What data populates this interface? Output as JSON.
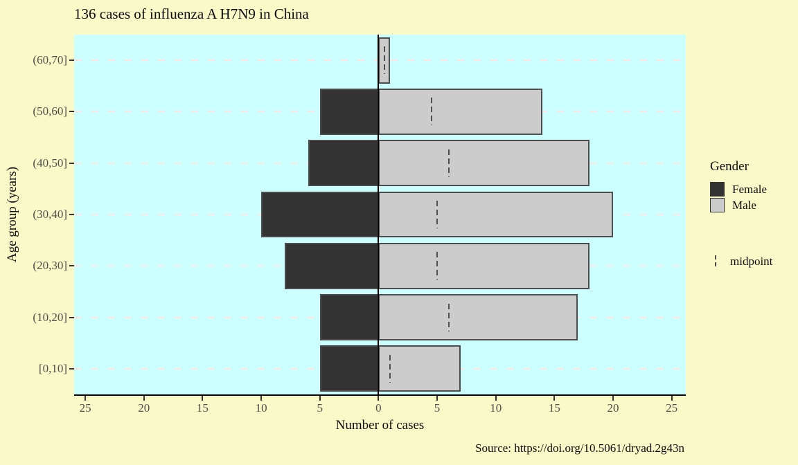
{
  "figure": {
    "source_note": "Source: https://doi.org/10.5061/dryad.2g43n"
  },
  "chart_data": {
    "type": "bar",
    "subtype": "population-pyramid",
    "title": "136 cases of influenza A H7N9 in China",
    "xlabel": "Number of cases",
    "ylabel": "Age group (years)",
    "categories": [
      "(60,70]",
      "(50,60]",
      "(40,50]",
      "(30,40]",
      "(20,30]",
      "(10,20]",
      "[0,10]"
    ],
    "series": [
      {
        "name": "Female",
        "direction": "left",
        "color": "#333333",
        "values": [
          0,
          5,
          6,
          10,
          8,
          5,
          5
        ]
      },
      {
        "name": "Male",
        "direction": "right",
        "color": "#CCCCCC",
        "values": [
          1,
          14,
          18,
          20,
          18,
          17,
          7
        ]
      }
    ],
    "midpoints": {
      "label": "midpoint",
      "values": [
        0.5,
        4.5,
        6,
        5,
        5,
        6,
        1
      ]
    },
    "x_ticks": [
      -25,
      -20,
      -15,
      -10,
      -5,
      0,
      5,
      10,
      15,
      20,
      25
    ],
    "x_tick_labels": [
      "25",
      "20",
      "15",
      "10",
      "5",
      "0",
      "5",
      "10",
      "15",
      "20",
      "25"
    ],
    "xlim": [
      -25.95,
      26.2
    ],
    "grid": "horizontal-dashed",
    "legend_title": "Gender",
    "legend_position": "right",
    "colors": {
      "background": "#FAFAC8",
      "panel_background": "#CCFFFF",
      "gridline": "#FBE4E1",
      "bar_border": "#4D4D4D",
      "zero_line": "#000000",
      "axis_text": "#4D4D4D"
    }
  }
}
